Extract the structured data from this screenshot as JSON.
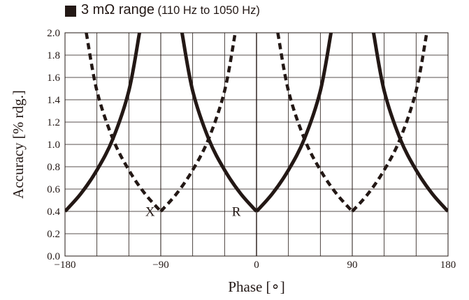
{
  "chart_data": {
    "type": "line",
    "title_main": "3 mΩ range",
    "title_sub": "(110 Hz to 1050 Hz)",
    "xlabel": "Phase [∘]",
    "ylabel": "Accuracy [% rdg.]",
    "xlim": [
      -180,
      180
    ],
    "ylim": [
      0,
      2.0
    ],
    "x_ticks": [
      -180,
      -90,
      0,
      90,
      180
    ],
    "x_tick_labels": [
      "−180",
      "−90",
      "0",
      "90",
      "180"
    ],
    "y_ticks": [
      0,
      0.2,
      0.4,
      0.6,
      0.8,
      1.0,
      1.2,
      1.4,
      1.6,
      1.8,
      2.0
    ],
    "y_tick_labels": [
      "0.0",
      "0.2",
      "0.4",
      "0.6",
      "0.8",
      "1.0",
      "1.2",
      "1.4",
      "1.6",
      "1.8",
      "2.0"
    ],
    "grid": true,
    "series": [
      {
        "name": "R",
        "style": "solid",
        "color": "#231815",
        "points": [
          [
            -180,
            0.4
          ],
          [
            -165,
            0.56
          ],
          [
            -150,
            0.77
          ],
          [
            -135,
            1.05
          ],
          [
            -120,
            1.48
          ],
          [
            -110,
            2.0
          ],
          [
            -70,
            2.0
          ],
          [
            -60,
            1.48
          ],
          [
            -45,
            1.05
          ],
          [
            -30,
            0.77
          ],
          [
            -15,
            0.56
          ],
          [
            0,
            0.4
          ],
          [
            15,
            0.56
          ],
          [
            30,
            0.77
          ],
          [
            45,
            1.05
          ],
          [
            60,
            1.48
          ],
          [
            70,
            2.0
          ],
          [
            110,
            2.0
          ],
          [
            120,
            1.48
          ],
          [
            135,
            1.05
          ],
          [
            150,
            0.77
          ],
          [
            165,
            0.56
          ],
          [
            180,
            0.4
          ]
        ]
      },
      {
        "name": "X",
        "style": "dashed",
        "color": "#231815",
        "points": [
          [
            -160,
            2.0
          ],
          [
            -150,
            1.48
          ],
          [
            -135,
            1.05
          ],
          [
            -120,
            0.77
          ],
          [
            -105,
            0.56
          ],
          [
            -90,
            0.4
          ],
          [
            -75,
            0.56
          ],
          [
            -60,
            0.77
          ],
          [
            -45,
            1.05
          ],
          [
            -30,
            1.48
          ],
          [
            -20,
            2.0
          ],
          [
            20,
            2.0
          ],
          [
            30,
            1.48
          ],
          [
            45,
            1.05
          ],
          [
            60,
            0.77
          ],
          [
            75,
            0.56
          ],
          [
            90,
            0.4
          ],
          [
            105,
            0.56
          ],
          [
            120,
            0.77
          ],
          [
            135,
            1.05
          ],
          [
            150,
            1.48
          ],
          [
            160,
            2.0
          ]
        ]
      }
    ],
    "annotations": [
      {
        "text": "X",
        "x": -100,
        "y": 0.36
      },
      {
        "text": "R",
        "x": -19,
        "y": 0.36
      }
    ]
  }
}
